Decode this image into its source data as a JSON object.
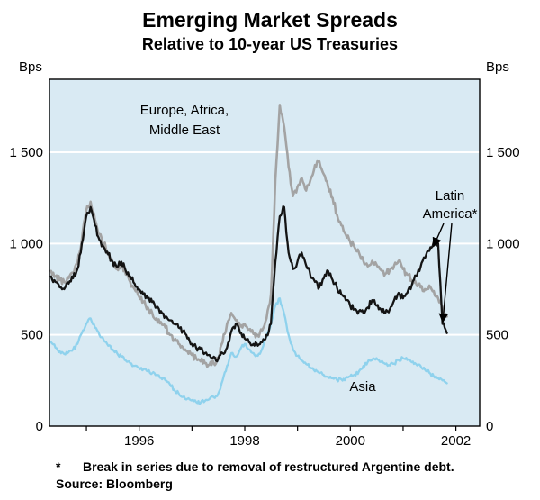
{
  "chart": {
    "title": "Emerging Market Spreads",
    "subtitle": "Relative to 10-year US Treasuries",
    "y_unit_left": "Bps",
    "y_unit_right": "Bps",
    "footnote_marker": "*",
    "footnote_text": "Break in series due to removal of restructured Argentine debt.",
    "source": "Source: Bloomberg"
  },
  "chart_data": {
    "type": "line",
    "title": "Emerging Market Spreads",
    "subtitle": "Relative to 10-year US Treasuries",
    "ylabel": "Bps",
    "xlim": [
      1994.3,
      2002.45
    ],
    "ylim": [
      0,
      1900
    ],
    "x_start": 1994.33,
    "x_step": 0.0833333,
    "grid": true,
    "grid_values": [
      500,
      1000,
      1500
    ],
    "plot_bg": "#d9eaf3",
    "grid_color": "#ffffff",
    "yticks": [
      {
        "value": 0,
        "label": "0"
      },
      {
        "value": 500,
        "label": "500"
      },
      {
        "value": 1000,
        "label": "1 000"
      },
      {
        "value": 1500,
        "label": "1 500"
      }
    ],
    "xticks": [
      {
        "value": 1996,
        "label": "1996"
      },
      {
        "value": 1998,
        "label": "1998"
      },
      {
        "value": 2000,
        "label": "2000"
      },
      {
        "value": 2002,
        "label": "2002"
      }
    ],
    "series": [
      {
        "name": "Europe, Africa, Middle East",
        "color": "#a3a3a3",
        "width": 2.6,
        "jitter": 18,
        "values": [
          850,
          820,
          800,
          790,
          810,
          840,
          890,
          1020,
          1180,
          1230,
          1130,
          1050,
          1000,
          950,
          900,
          860,
          880,
          830,
          790,
          750,
          710,
          680,
          650,
          620,
          590,
          570,
          540,
          500,
          470,
          450,
          430,
          410,
          390,
          370,
          355,
          345,
          335,
          345,
          365,
          460,
          560,
          620,
          580,
          545,
          560,
          530,
          505,
          495,
          525,
          590,
          720,
          1350,
          1760,
          1640,
          1420,
          1260,
          1310,
          1360,
          1290,
          1350,
          1430,
          1450,
          1380,
          1310,
          1250,
          1160,
          1100,
          1050,
          1010,
          980,
          950,
          905,
          875,
          905,
          885,
          855,
          835,
          855,
          880,
          905,
          860,
          830,
          800,
          780,
          760,
          750,
          770,
          740,
          700,
          650,
          600
        ]
      },
      {
        "name": "Asia",
        "color": "#8fd2ed",
        "width": 2.3,
        "jitter": 10,
        "values": [
          460,
          430,
          410,
          395,
          405,
          420,
          450,
          510,
          560,
          590,
          540,
          500,
          470,
          440,
          420,
          400,
          380,
          360,
          345,
          330,
          320,
          310,
          300,
          290,
          280,
          265,
          250,
          230,
          200,
          180,
          160,
          150,
          140,
          132,
          128,
          138,
          148,
          158,
          178,
          250,
          330,
          400,
          380,
          420,
          450,
          420,
          400,
          385,
          425,
          490,
          560,
          660,
          700,
          615,
          500,
          420,
          385,
          360,
          340,
          320,
          300,
          290,
          280,
          270,
          262,
          252,
          256,
          262,
          272,
          282,
          300,
          330,
          352,
          362,
          372,
          352,
          340,
          332,
          342,
          362,
          372,
          362,
          350,
          340,
          330,
          310,
          292,
          272,
          262,
          250,
          235
        ]
      },
      {
        "name": "Latin America",
        "color": "#141414",
        "width": 2.3,
        "jitter": 18,
        "values": [
          820,
          790,
          760,
          750,
          780,
          810,
          860,
          1000,
          1150,
          1200,
          1100,
          1020,
          980,
          940,
          900,
          870,
          900,
          850,
          820,
          780,
          750,
          720,
          700,
          680,
          650,
          630,
          600,
          580,
          560,
          540,
          520,
          480,
          450,
          430,
          420,
          400,
          390,
          380,
          370,
          400,
          430,
          520,
          560,
          510,
          480,
          460,
          450,
          440,
          460,
          500,
          560,
          900,
          1150,
          1200,
          950,
          860,
          900,
          950,
          880,
          820,
          790,
          760,
          810,
          850,
          800,
          760,
          720,
          690,
          660,
          640,
          630,
          620,
          650,
          690,
          660,
          640,
          620,
          640,
          690,
          730,
          700,
          730,
          770,
          820,
          870,
          920,
          960,
          1010,
          1000,
          560,
          510
        ]
      }
    ],
    "annotations": [
      {
        "text_lines": [
          "Europe, Africa,",
          "Middle East"
        ]
      },
      {
        "text_lines": [
          "Latin",
          "America*"
        ],
        "arrows": true
      },
      {
        "text_lines": [
          "Asia"
        ]
      }
    ],
    "legend_position": "none"
  }
}
